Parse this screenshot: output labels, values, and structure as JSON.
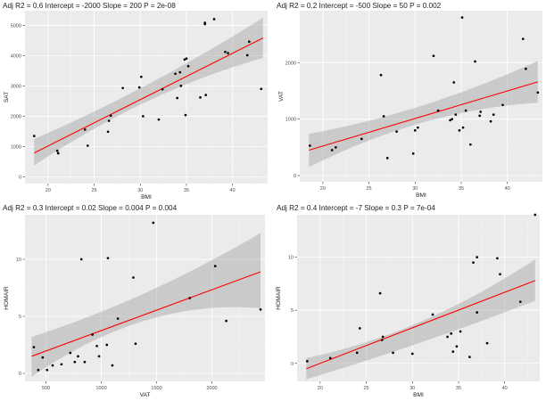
{
  "chart_data": [
    {
      "type": "scatter",
      "title": "Adj R2 =  0.6 Intercept = -2000  Slope = 200  P = 2e-08",
      "xlabel": "BMI",
      "ylabel": "SAT",
      "xlim": [
        17.5,
        43.8
      ],
      "ylim": [
        -220,
        5480
      ],
      "xticks": [
        20,
        25,
        30,
        35,
        40
      ],
      "yticks": [
        0,
        1000,
        2000,
        3000,
        4000,
        5000
      ],
      "x": [
        18.5,
        21.0,
        21.1,
        24.0,
        24.3,
        26.5,
        26.6,
        26.8,
        28.1,
        29.9,
        30.1,
        30.3,
        32.0,
        32.4,
        33.8,
        34.0,
        34.3,
        34.4,
        34.8,
        34.9,
        35.0,
        35.2,
        36.5,
        37.0,
        37.0,
        37.1,
        38.0,
        39.2,
        39.5,
        41.6,
        41.8,
        43.1
      ],
      "y": [
        1350,
        860,
        780,
        1560,
        1030,
        1490,
        1850,
        2020,
        2930,
        2950,
        3300,
        2000,
        1890,
        2890,
        3400,
        2600,
        3450,
        3000,
        3870,
        2040,
        3900,
        3650,
        2620,
        5040,
        5080,
        2700,
        5200,
        4120,
        4080,
        4010,
        4460,
        2900
      ],
      "fit": {
        "x": [
          18.5,
          43.3
        ],
        "y": [
          790,
          4580
        ]
      },
      "band": {
        "x": [
          18.5,
          30.0,
          43.3
        ],
        "lower": [
          380,
          2380,
          3920
        ],
        "upper": [
          1250,
          2920,
          5250
        ]
      }
    },
    {
      "type": "scatter",
      "title": "Adj R2 =  0.2 Intercept = -500  Slope = 50  P = 0.002",
      "xlabel": "BMI",
      "ylabel": "VAT",
      "xlim": [
        17.5,
        43.8
      ],
      "ylim": [
        -110,
        2920
      ],
      "xticks": [
        20,
        25,
        30,
        35,
        40
      ],
      "yticks": [
        0,
        1000,
        2000
      ],
      "x": [
        18.6,
        21.0,
        21.4,
        24.2,
        26.3,
        26.6,
        27.0,
        28.0,
        29.8,
        30.0,
        30.3,
        32.0,
        32.5,
        33.8,
        34.0,
        34.2,
        34.4,
        34.8,
        35.1,
        35.2,
        35.5,
        36.0,
        36.5,
        37.0,
        37.1,
        38.2,
        38.5,
        39.5,
        41.7,
        42.0,
        43.3
      ],
      "y": [
        530,
        450,
        500,
        650,
        1780,
        1050,
        310,
        780,
        390,
        800,
        850,
        2120,
        1150,
        980,
        1000,
        1650,
        1080,
        800,
        2800,
        850,
        1150,
        550,
        2020,
        1060,
        1130,
        960,
        1080,
        1250,
        2420,
        1890,
        1470
      ],
      "fit": {
        "x": [
          18.5,
          43.3
        ],
        "y": [
          450,
          1660
        ]
      },
      "band": {
        "x": [
          18.5,
          30.0,
          43.3
        ],
        "lower": [
          150,
          900,
          1290
        ],
        "upper": [
          740,
          1200,
          2030
        ]
      }
    },
    {
      "type": "scatter",
      "title": "Adj R2 =  0.3 Intercept = 0.02  Slope = 0.004  P = 0.004",
      "xlabel": "VAT",
      "ylabel": "HOMAIR",
      "xlim": [
        310,
        2480
      ],
      "ylim": [
        -0.7,
        13.9
      ],
      "xticks": [
        500,
        1000,
        1500,
        2000
      ],
      "yticks": [
        0,
        5,
        10
      ],
      "x": [
        390,
        430,
        470,
        510,
        560,
        640,
        720,
        760,
        790,
        820,
        850,
        920,
        960,
        980,
        1050,
        1060,
        1100,
        1150,
        1290,
        1310,
        1470,
        1800,
        2030,
        2130,
        2440
      ],
      "y": [
        2.3,
        0.3,
        1.4,
        0.3,
        0.7,
        0.8,
        1.8,
        1.0,
        1.5,
        10.0,
        1.0,
        3.4,
        2.4,
        1.5,
        2.5,
        10.1,
        0.7,
        4.8,
        8.4,
        2.6,
        13.2,
        6.6,
        9.4,
        4.6,
        5.6
      ],
      "fit": {
        "x": [
          370,
          2440
        ],
        "y": [
          1.5,
          8.9
        ]
      },
      "band": {
        "x": [
          370,
          1100,
          2440
        ],
        "lower": [
          -0.3,
          3.6,
          5.7
        ],
        "upper": [
          3.2,
          5.8,
          12.3
        ]
      }
    },
    {
      "type": "scatter",
      "title": "Adj R2 =  0.4 Intercept = -7  Slope = 0.3  P = 7e-04",
      "xlabel": "BMI",
      "ylabel": "HOMAIR",
      "xlim": [
        17.5,
        43.8
      ],
      "ylim": [
        -1.7,
        14.0
      ],
      "xticks": [
        20,
        25,
        30,
        35,
        40
      ],
      "yticks": [
        0,
        5,
        10
      ],
      "x": [
        18.6,
        21.1,
        24.0,
        24.3,
        26.5,
        26.7,
        26.8,
        27.9,
        30.0,
        32.2,
        33.8,
        34.2,
        34.4,
        34.8,
        35.2,
        36.2,
        36.6,
        37.0,
        37.0,
        38.1,
        39.2,
        39.5,
        41.7,
        43.3
      ],
      "y": [
        0.2,
        0.5,
        1.0,
        3.3,
        6.6,
        2.2,
        2.5,
        1.0,
        0.9,
        4.6,
        2.5,
        2.8,
        1.1,
        1.6,
        3.0,
        0.6,
        9.5,
        10.0,
        4.8,
        1.9,
        9.9,
        8.4,
        5.8,
        14.0
      ],
      "fit": {
        "x": [
          18.5,
          43.3
        ],
        "y": [
          -0.5,
          7.8
        ]
      },
      "band": {
        "x": [
          18.5,
          30.0,
          43.3
        ],
        "lower": [
          -1.5,
          1.7,
          5.9
        ],
        "upper": [
          0.5,
          3.6,
          9.8
        ]
      }
    }
  ]
}
